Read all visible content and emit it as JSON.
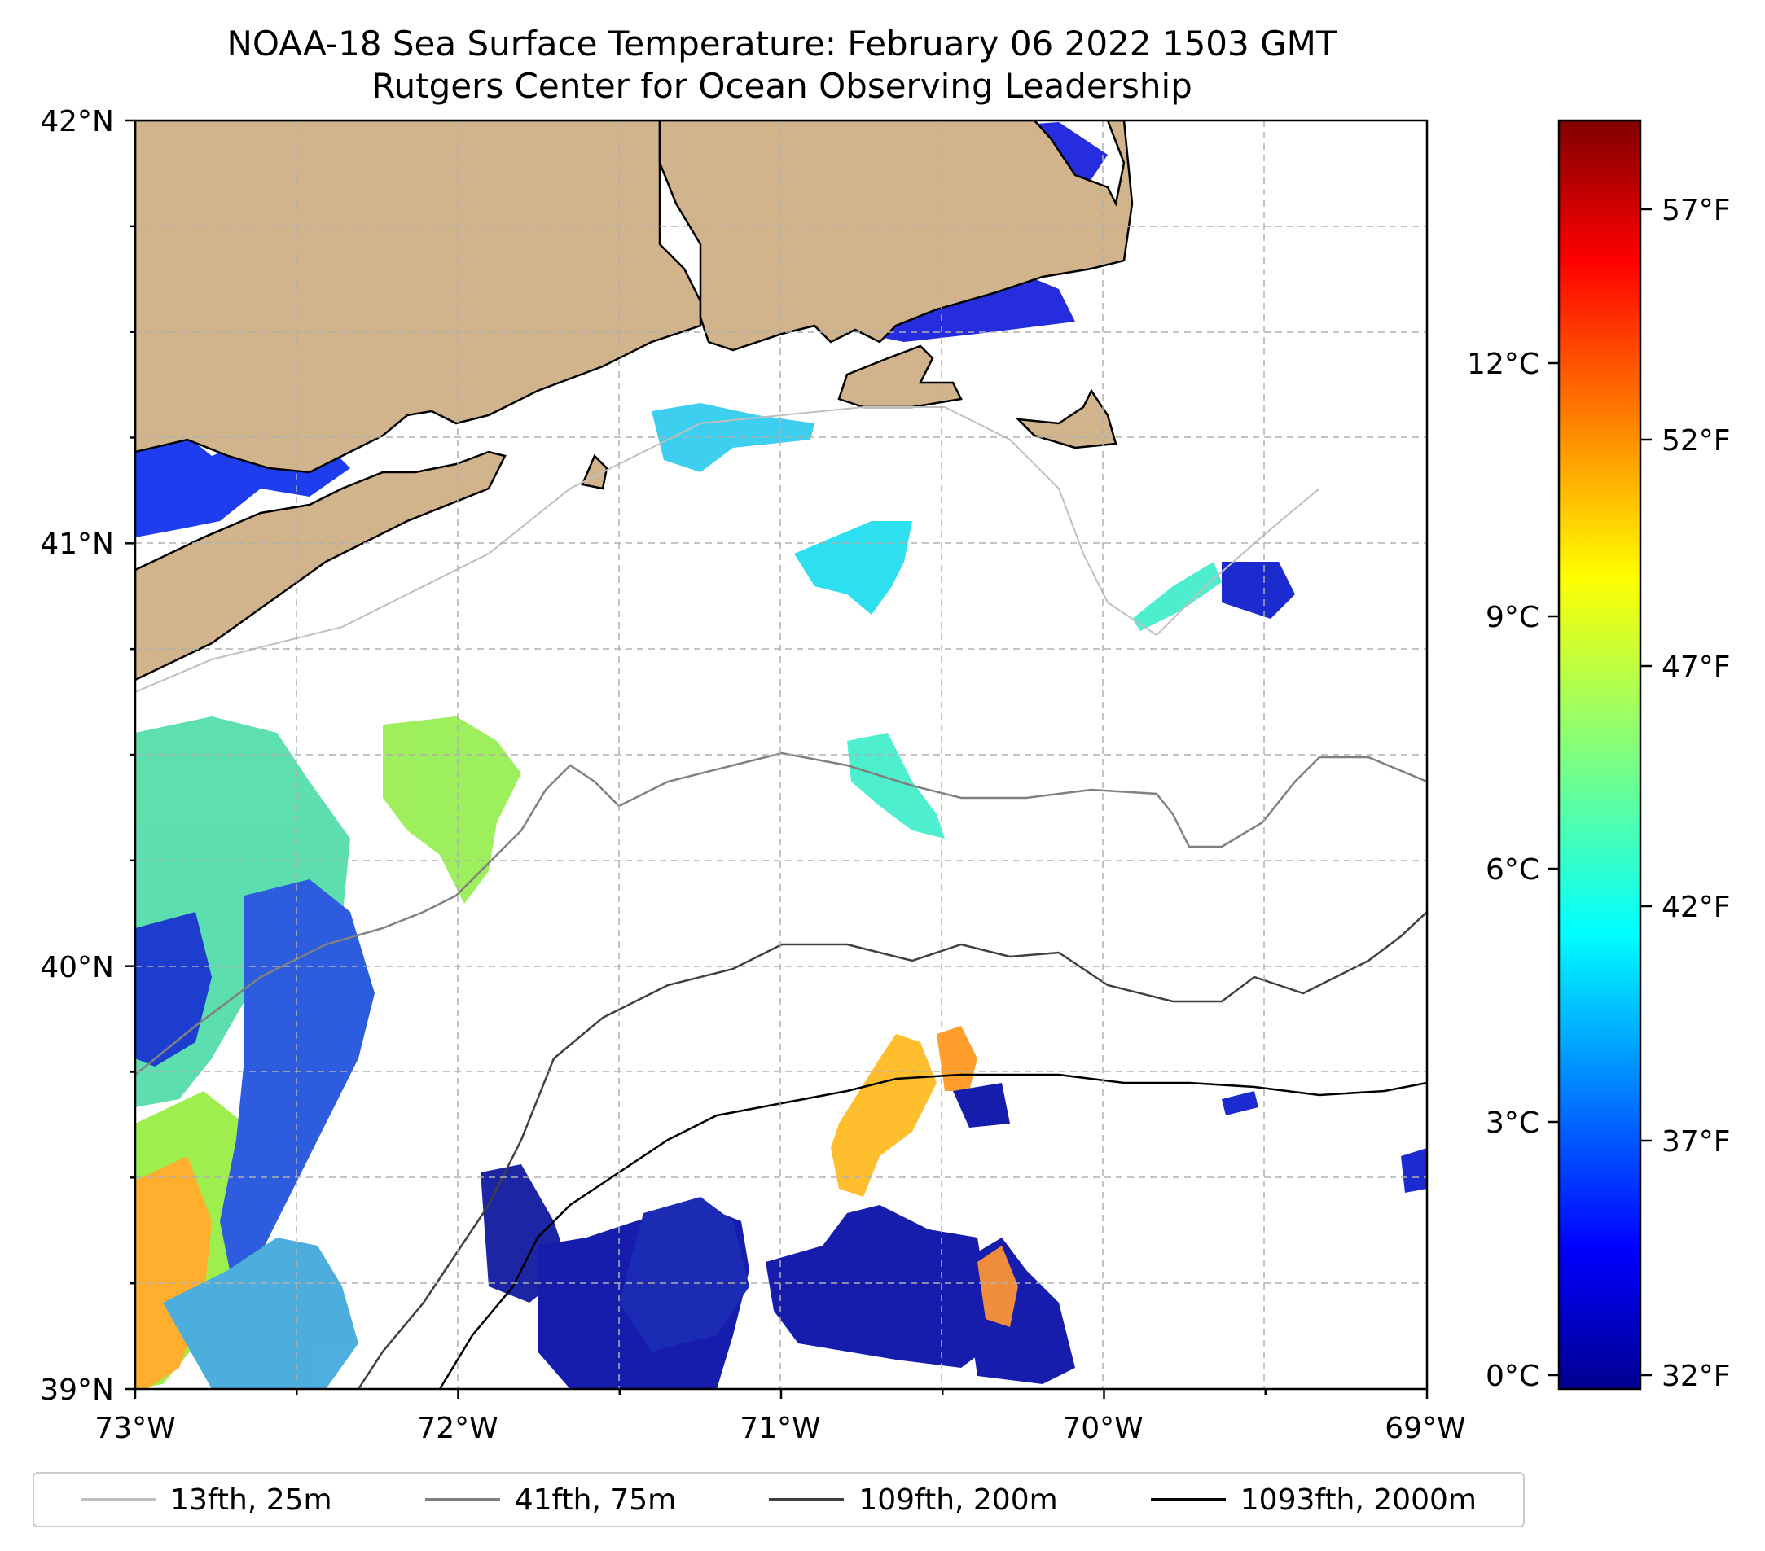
{
  "title": "NOAA-18 Sea Surface Temperature: February 06 2022 1503 GMT",
  "subtitle": "Rutgers Center for Ocean Observing Leadership",
  "axes": {
    "lon_ticks": [
      "73°W",
      "72°W",
      "71°W",
      "70°W",
      "69°W"
    ],
    "lat_ticks": [
      "42°N",
      "41°N",
      "40°N",
      "39°N"
    ],
    "lon_range": [
      -73,
      -69
    ],
    "lat_range": [
      39,
      42
    ],
    "grid": true
  },
  "colorbar": {
    "colormap": "jet",
    "celsius_ticks": [
      "12°C",
      "9°C",
      "6°C",
      "3°C",
      "0°C"
    ],
    "fahrenheit_ticks": [
      "57°F",
      "52°F",
      "47°F",
      "42°F",
      "37°F",
      "32°F"
    ],
    "range_c": [
      -0.3,
      14.7
    ]
  },
  "legend": {
    "placement": "bottom",
    "items": [
      {
        "label": "13fth, 25m",
        "color": "#bfbfbf"
      },
      {
        "label": "41fth, 75m",
        "color": "#808080"
      },
      {
        "label": "109fth, 200m",
        "color": "#404040"
      },
      {
        "label": "1093fth, 2000m",
        "color": "#000000"
      }
    ]
  },
  "colors": {
    "land": "#d2b48c",
    "coastline": "#000000",
    "grid": "#b0b0b0"
  }
}
